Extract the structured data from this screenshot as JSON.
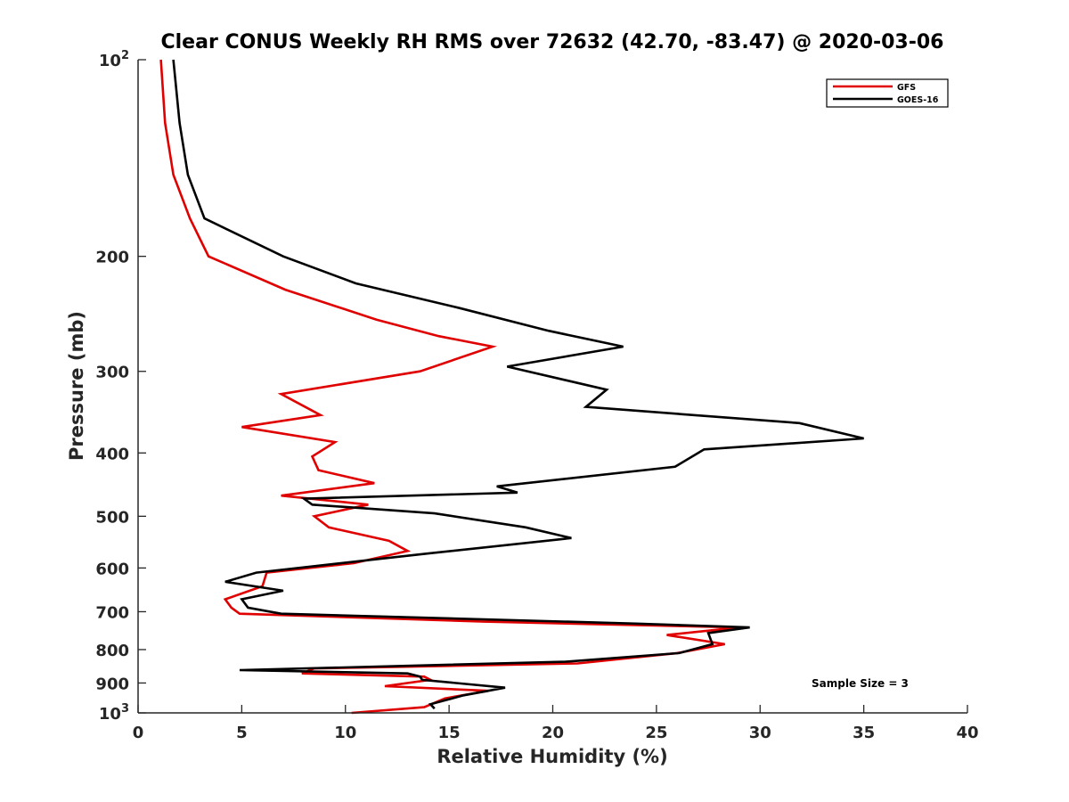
{
  "chart_data": {
    "type": "line",
    "title": "Clear CONUS Weekly RH RMS over 72632 (42.70, -83.47) @ 2020-03-06",
    "xlabel": "Relative Humidity (%)",
    "ylabel": "Pressure (mb)",
    "xlim": [
      0,
      40
    ],
    "ylim": [
      100,
      1000
    ],
    "yscale": "log",
    "y_reversed": true,
    "x_ticks": [
      "0",
      "5",
      "10",
      "15",
      "20",
      "25",
      "30",
      "35",
      "40"
    ],
    "y_ticks": [
      {
        "value": 100,
        "base": "10",
        "exp": "2"
      },
      {
        "value": 200,
        "label": "200"
      },
      {
        "value": 300,
        "label": "300"
      },
      {
        "value": 400,
        "label": "400"
      },
      {
        "value": 500,
        "label": "500"
      },
      {
        "value": 600,
        "label": "600"
      },
      {
        "value": 700,
        "label": "700"
      },
      {
        "value": 800,
        "label": "800"
      },
      {
        "value": 900,
        "label": "900"
      },
      {
        "value": 1000,
        "base": "10",
        "exp": "3"
      }
    ],
    "legend_position": "top-right",
    "annotation": "Sample Size = 3",
    "series": [
      {
        "name": "GFS",
        "color": "#e00000",
        "points": [
          [
            1.1,
            100
          ],
          [
            1.3,
            125
          ],
          [
            1.7,
            150
          ],
          [
            2.5,
            175
          ],
          [
            3.4,
            200
          ],
          [
            7.1,
            225
          ],
          [
            11.5,
            250
          ],
          [
            14.5,
            265
          ],
          [
            17.1,
            275
          ],
          [
            13.6,
            300
          ],
          [
            6.9,
            325
          ],
          [
            8.8,
            350
          ],
          [
            5.0,
            365
          ],
          [
            9.5,
            385
          ],
          [
            8.4,
            405
          ],
          [
            8.7,
            425
          ],
          [
            11.4,
            445
          ],
          [
            6.9,
            465
          ],
          [
            11.1,
            480
          ],
          [
            8.5,
            500
          ],
          [
            9.2,
            520
          ],
          [
            12.1,
            545
          ],
          [
            13.0,
            565
          ],
          [
            10.4,
            590
          ],
          [
            6.2,
            610
          ],
          [
            6.0,
            640
          ],
          [
            4.2,
            670
          ],
          [
            4.5,
            690
          ],
          [
            4.9,
            705
          ],
          [
            16.7,
            725
          ],
          [
            29.0,
            740
          ],
          [
            25.5,
            760
          ],
          [
            28.3,
            785
          ],
          [
            26.0,
            810
          ],
          [
            21.2,
            840
          ],
          [
            8.5,
            855
          ],
          [
            7.9,
            870
          ],
          [
            13.8,
            880
          ],
          [
            14.1,
            890
          ],
          [
            11.9,
            910
          ],
          [
            16.9,
            925
          ],
          [
            14.8,
            950
          ],
          [
            13.8,
            980
          ],
          [
            10.3,
            1000
          ]
        ]
      },
      {
        "name": "GOES-16",
        "color": "#000000",
        "points": [
          [
            1.7,
            100
          ],
          [
            2.0,
            125
          ],
          [
            2.4,
            150
          ],
          [
            3.2,
            175
          ],
          [
            7.0,
            200
          ],
          [
            10.5,
            220
          ],
          [
            15.5,
            240
          ],
          [
            19.8,
            260
          ],
          [
            23.4,
            275
          ],
          [
            17.8,
            295
          ],
          [
            22.6,
            320
          ],
          [
            21.6,
            340
          ],
          [
            31.9,
            360
          ],
          [
            35.0,
            380
          ],
          [
            27.3,
            395
          ],
          [
            25.9,
            420
          ],
          [
            17.3,
            450
          ],
          [
            18.3,
            460
          ],
          [
            8.0,
            470
          ],
          [
            8.4,
            480
          ],
          [
            14.3,
            495
          ],
          [
            18.7,
            520
          ],
          [
            20.9,
            540
          ],
          [
            14.0,
            570
          ],
          [
            5.7,
            610
          ],
          [
            4.2,
            630
          ],
          [
            7.0,
            650
          ],
          [
            5.0,
            670
          ],
          [
            5.3,
            690
          ],
          [
            6.9,
            705
          ],
          [
            24.0,
            730
          ],
          [
            29.5,
            740
          ],
          [
            27.5,
            755
          ],
          [
            27.7,
            785
          ],
          [
            26.1,
            810
          ],
          [
            20.6,
            835
          ],
          [
            4.9,
            860
          ],
          [
            13.0,
            870
          ],
          [
            13.6,
            880
          ],
          [
            13.7,
            890
          ],
          [
            17.7,
            915
          ],
          [
            15.7,
            940
          ],
          [
            14.1,
            970
          ],
          [
            14.3,
            985
          ]
        ]
      }
    ]
  }
}
